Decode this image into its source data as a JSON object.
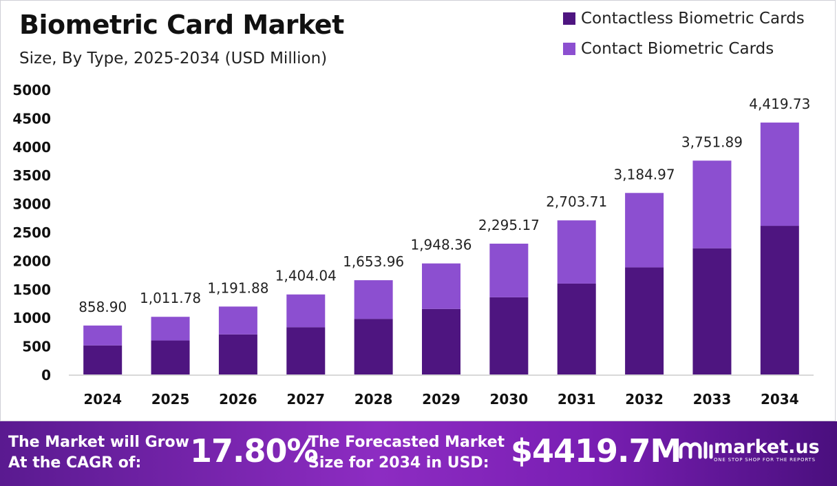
{
  "header": {
    "title": "Biometric Card Market",
    "subtitle": "Size, By Type, 2025-2034 (USD Million)"
  },
  "colors": {
    "contactless": "#4e1580",
    "contact": "#8c4fd0",
    "axis": "#cccccc",
    "text": "#111111"
  },
  "chart_data": {
    "type": "bar",
    "stacked": true,
    "categories": [
      "2024",
      "2025",
      "2026",
      "2027",
      "2028",
      "2029",
      "2030",
      "2031",
      "2032",
      "2033",
      "2034"
    ],
    "series": [
      {
        "name": "Contactless Biometric Cards",
        "values": [
          510,
          597,
          703,
          829,
          976,
          1150,
          1354,
          1595,
          1879,
          2214,
          2608
        ]
      },
      {
        "name": "Contact Biometric Cards",
        "values": [
          348.9,
          414.78,
          488.88,
          575.04,
          677.96,
          798.36,
          941.17,
          1108.71,
          1305.97,
          1537.89,
          1811.73
        ]
      }
    ],
    "totals": [
      "858.90",
      "1,011.78",
      "1,191.88",
      "1,404.04",
      "1,653.96",
      "1,948.36",
      "2,295.17",
      "2,703.71",
      "3,184.97",
      "3,751.89",
      "4,419.73"
    ],
    "yticks": [
      "0",
      "500",
      "1000",
      "1500",
      "2000",
      "2500",
      "3000",
      "3500",
      "4000",
      "4500",
      "5000"
    ],
    "ylim": [
      0,
      5000
    ],
    "grid": false,
    "legend": "top-right"
  },
  "footer": {
    "cagr_label_1": "The Market will Grow",
    "cagr_label_2": "At the CAGR of:",
    "cagr_value": "17.80%",
    "forecast_label_1": "The Forecasted Market",
    "forecast_label_2": "Size for 2034 in USD:",
    "forecast_value": "$4419.7M",
    "brand_name": "market.us",
    "brand_tagline": "ONE STOP SHOP FOR THE REPORTS"
  }
}
